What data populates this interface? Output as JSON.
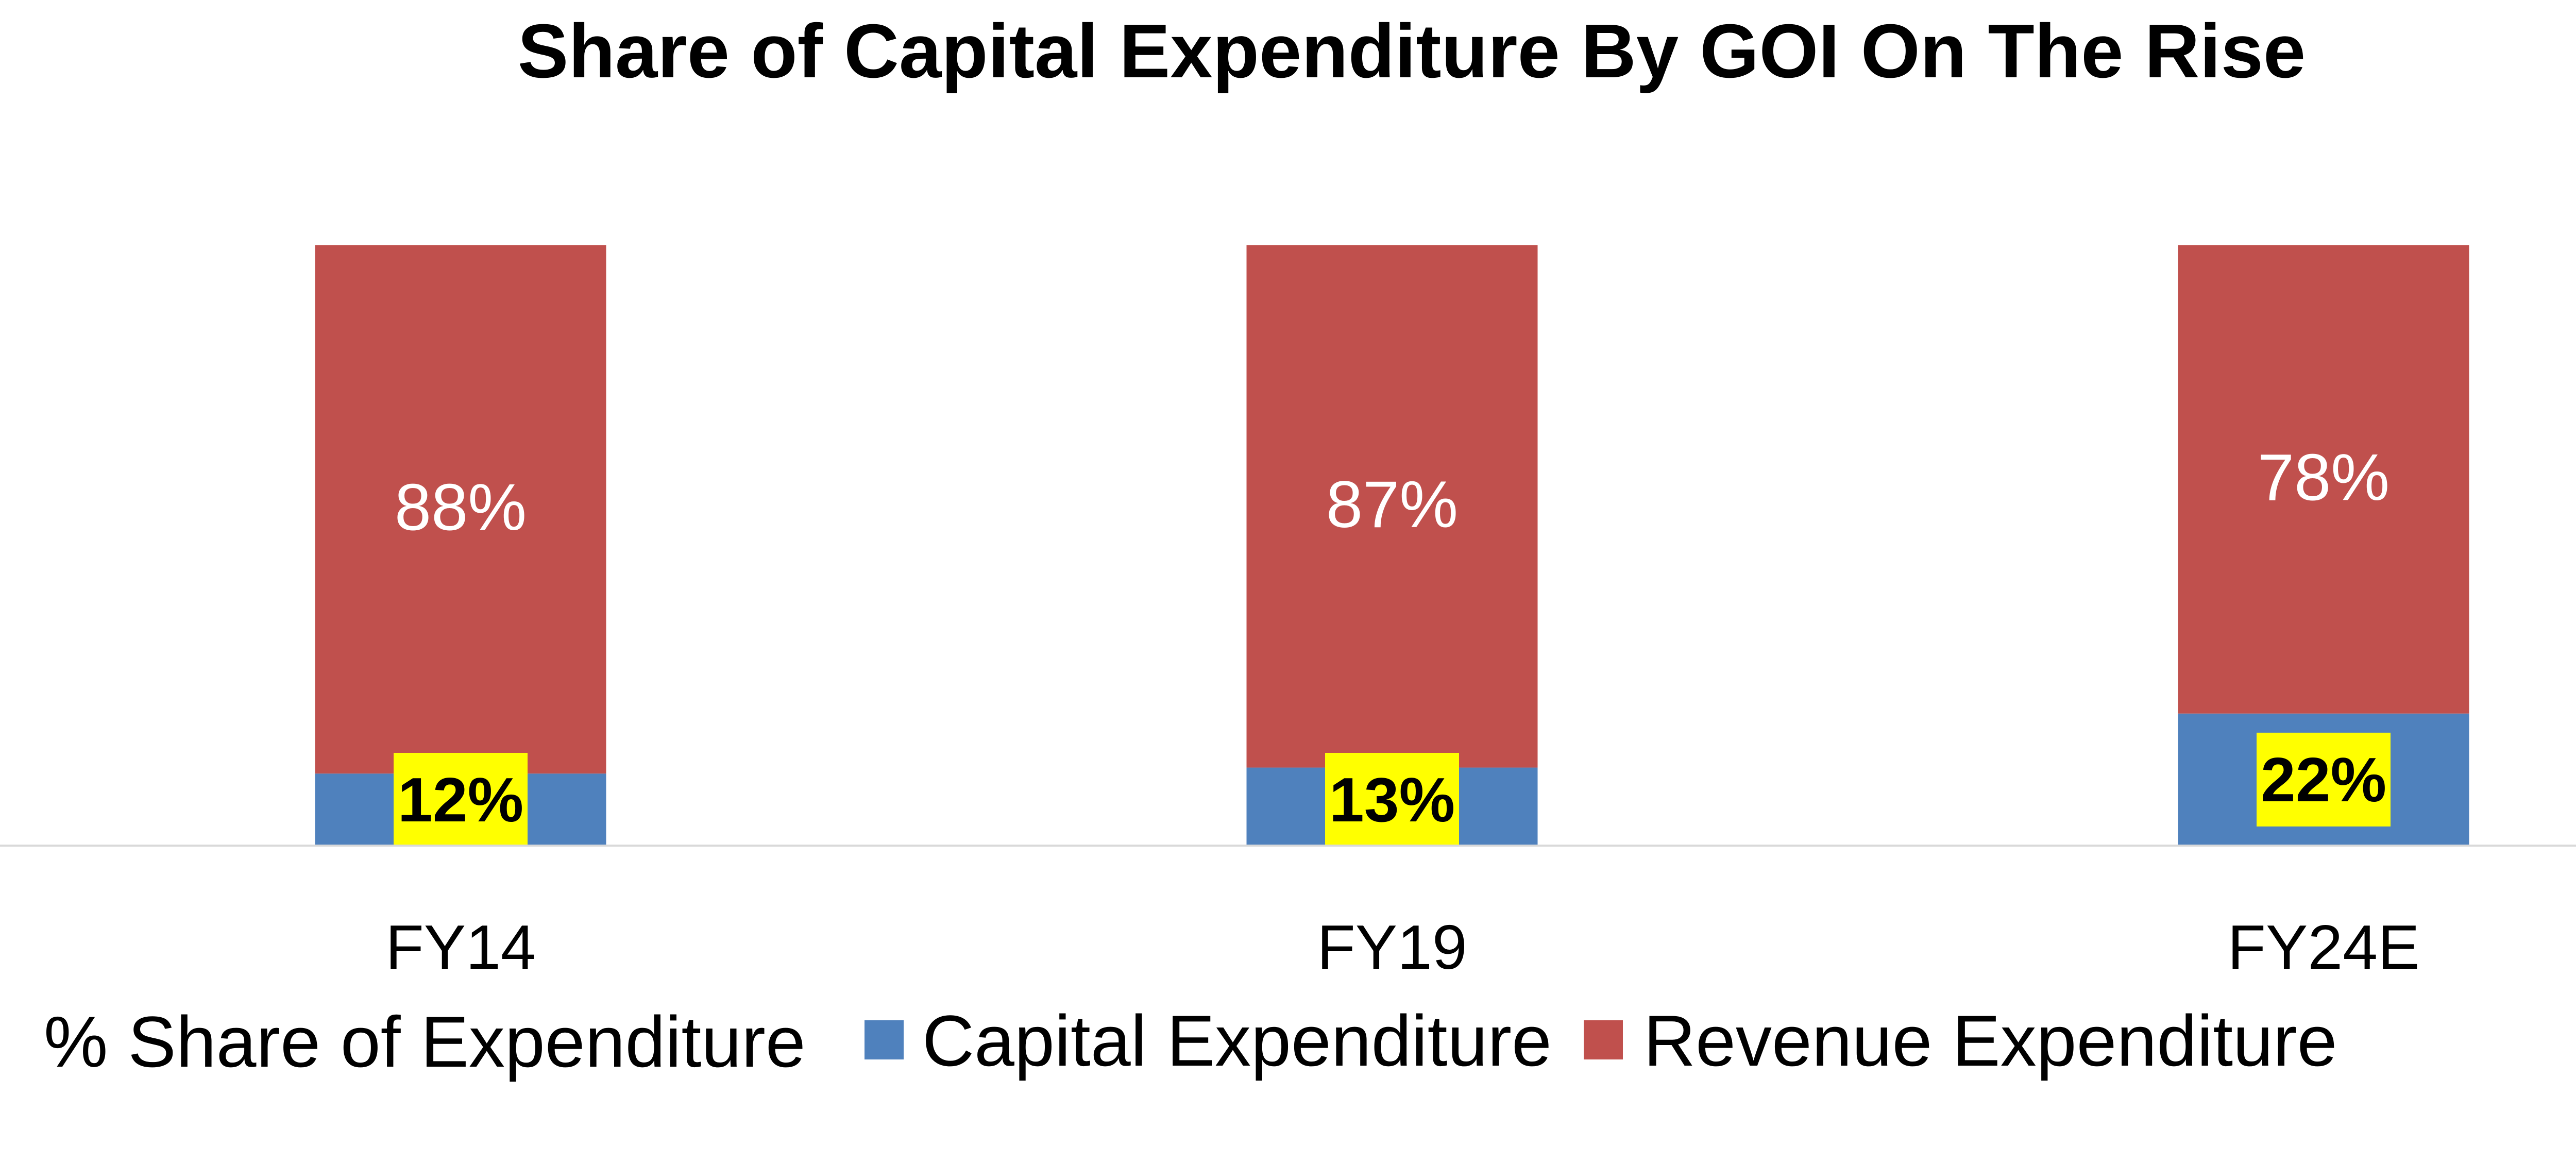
{
  "chart_data": {
    "type": "bar",
    "stacked": true,
    "title": "Share of Capital Expenditure By GOI On The Rise",
    "categories": [
      "FY14",
      "FY19",
      "FY24E"
    ],
    "series": [
      {
        "name": "Capital Expenditure",
        "values": [
          12,
          13,
          22
        ],
        "labels": [
          "12%",
          "13%",
          "22%"
        ],
        "color": "#4f81bd",
        "label_highlight": "#ffff00"
      },
      {
        "name": "Revenue Expenditure",
        "values": [
          88,
          87,
          78
        ],
        "labels": [
          "88%",
          "87%",
          "78%"
        ],
        "color": "#c0504d"
      }
    ],
    "ylim": [
      0,
      100
    ],
    "grid": false,
    "legend": {
      "placement": "bottom",
      "title": "% Share of Expenditure"
    }
  }
}
